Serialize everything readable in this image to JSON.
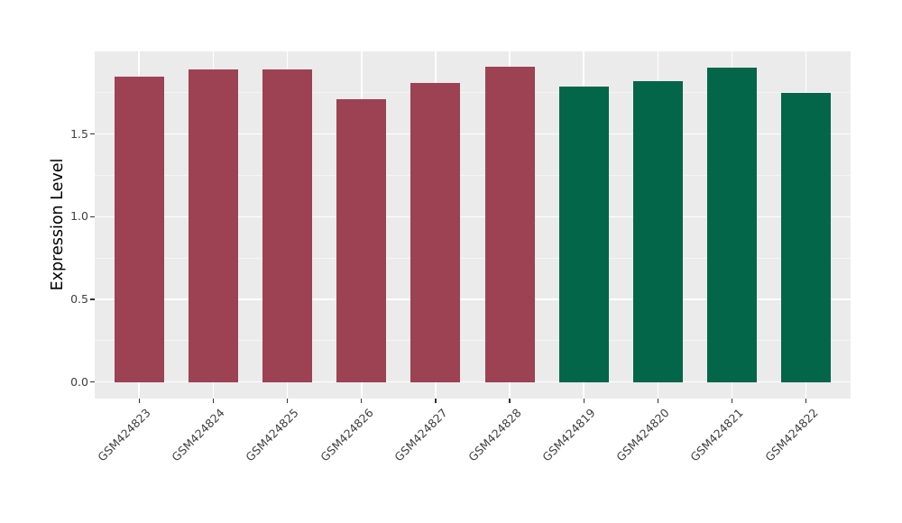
{
  "chart_data": {
    "type": "bar",
    "title": "",
    "xlabel": "",
    "ylabel": "Expression Level",
    "categories": [
      "GSM424823",
      "GSM424824",
      "GSM424825",
      "GSM424826",
      "GSM424827",
      "GSM424828",
      "GSM424819",
      "GSM424820",
      "GSM424821",
      "GSM424822"
    ],
    "values": [
      1.85,
      1.89,
      1.89,
      1.71,
      1.81,
      1.91,
      1.79,
      1.82,
      1.9,
      1.75
    ],
    "bar_colors": [
      "#9C4253",
      "#9C4253",
      "#9C4253",
      "#9C4253",
      "#9C4253",
      "#9C4253",
      "#036649",
      "#036649",
      "#036649",
      "#036649"
    ],
    "group_colors": {
      "red_group": "#9C4253",
      "green_group": "#036649"
    },
    "ylim": [
      -0.1,
      2.0
    ],
    "yticks": {
      "values": [
        0.0,
        0.5,
        1.0,
        1.5
      ],
      "labels": [
        "0.0",
        "0.5",
        "1.0",
        "1.5"
      ]
    },
    "minor_yticks": [
      0.25,
      0.75,
      1.25,
      1.75
    ],
    "x_tick_angle_deg": 45,
    "grid": true,
    "legend": "none",
    "colors": {
      "figure_background": "#FFFFFF",
      "panel_background": "#EBEBEB",
      "grid_major": "#FFFFFF",
      "grid_minor": "#F5F5F5",
      "tick_mark": "#333333",
      "tick_label": "#404040",
      "axis_title": "#000000"
    }
  }
}
